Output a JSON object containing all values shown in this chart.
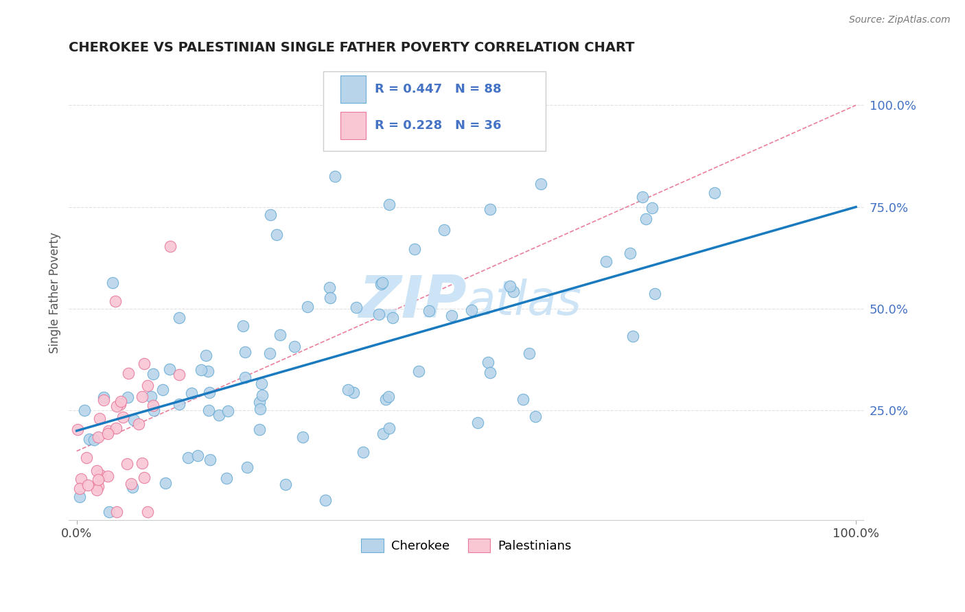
{
  "title": "CHEROKEE VS PALESTINIAN SINGLE FATHER POVERTY CORRELATION CHART",
  "source": "Source: ZipAtlas.com",
  "ylabel": "Single Father Poverty",
  "ylabel_right_ticks": [
    "100.0%",
    "75.0%",
    "50.0%",
    "25.0%"
  ],
  "ylabel_right_vals": [
    1.0,
    0.75,
    0.5,
    0.25
  ],
  "cherokee_R": 0.447,
  "cherokee_N": 88,
  "palestinian_R": 0.228,
  "palestinian_N": 36,
  "cherokee_color": "#b8d4ea",
  "cherokee_edge_color": "#6aaed6",
  "palestinian_color": "#f9c6d4",
  "palestinian_edge_color": "#e8799a",
  "trend_cherokee_color": "#1a7abf",
  "trend_palestinian_color": "#e87090",
  "watermark_color": "#cce4f5",
  "background_color": "#ffffff",
  "grid_color": "#e0e0e0",
  "tick_label_color": "#4472c4",
  "title_color": "#222222",
  "ylabel_color": "#555555",
  "source_color": "#777777",
  "legend_edge_color": "#cccccc"
}
